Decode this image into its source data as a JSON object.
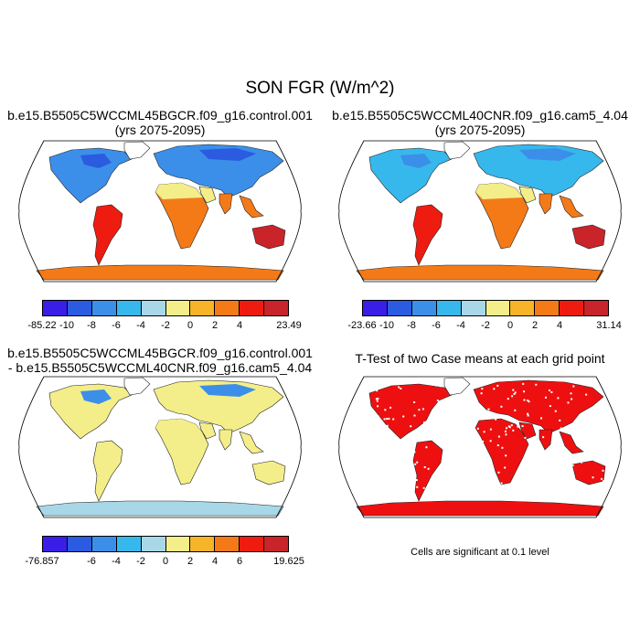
{
  "figure": {
    "title": "SON FGR (W/m^2)"
  },
  "panels": [
    {
      "title_line1": "b.e15.B5505C5WCCML45BGCR.f09_g16.control.001",
      "title_line2": "(yrs 2075-2095)",
      "colorbar": {
        "colors": [
          "#3a1ee8",
          "#2a5be0",
          "#3c8fe8",
          "#37b8ec",
          "#a8d8e8",
          "#f4ee8a",
          "#f8b428",
          "#f47a18",
          "#ee1c10",
          "#c8242a"
        ],
        "labels": [
          "-85.22",
          "-10",
          "-8",
          "-6",
          "-4",
          "-2",
          "0",
          "2",
          "4",
          "23.49"
        ]
      }
    },
    {
      "title_line1": "b.e15.B5505C5WCCML40CNR.f09_g16.cam5_4.04",
      "title_line2": "(yrs 2075-2095)",
      "colorbar": {
        "colors": [
          "#3a1ee8",
          "#2a5be0",
          "#3c8fe8",
          "#37b8ec",
          "#a8d8e8",
          "#f4ee8a",
          "#f8b428",
          "#f47a18",
          "#ee1c10",
          "#c8242a"
        ],
        "labels": [
          "-23.66",
          "-10",
          "-8",
          "-6",
          "-4",
          "-2",
          "0",
          "2",
          "4",
          "31.14"
        ]
      }
    },
    {
      "title_line1": "b.e15.B5505C5WCCML45BGCR.f09_g16.control.001",
      "title_line2": "- b.e15.B5505C5WCCML40CNR.f09_g16.cam5_4.04",
      "colorbar": {
        "colors": [
          "#3a1ee8",
          "#2a5be0",
          "#3c8fe8",
          "#37b8ec",
          "#a8d8e8",
          "#f4ee8a",
          "#f8b428",
          "#f47a18",
          "#ee1c10",
          "#c8242a"
        ],
        "labels": [
          "-76.857",
          "-6",
          "-4",
          "-2",
          "0",
          "2",
          "4",
          "6",
          "19.625"
        ]
      }
    },
    {
      "title_line1": "T-Test of two Case means at each grid point",
      "note": "Cells are significant at 0.1 level"
    }
  ],
  "map_fill": {
    "panel1": {
      "north": "#3c8fe8",
      "arctic": "#2a5be0",
      "tropics": "#f47a18",
      "south": "#ee1c10",
      "sahara": "#f4ee8a",
      "antarctica": "#f47a18",
      "australia": "#c8242a"
    },
    "panel2": {
      "north": "#37b8ec",
      "arctic": "#3c8fe8",
      "tropics": "#f47a18",
      "south": "#ee1c10",
      "sahara": "#f4ee8a",
      "antarctica": "#f47a18",
      "australia": "#c8242a"
    },
    "panel3": {
      "north": "#f4ee8a",
      "arctic": "#3c8fe8",
      "tropics": "#f4ee8a",
      "south": "#f4ee8a",
      "sahara": "#f4ee8a",
      "antarctica": "#a8d8e8",
      "australia": "#f4ee8a"
    },
    "panel4": {
      "significant": "#ee1010"
    }
  }
}
